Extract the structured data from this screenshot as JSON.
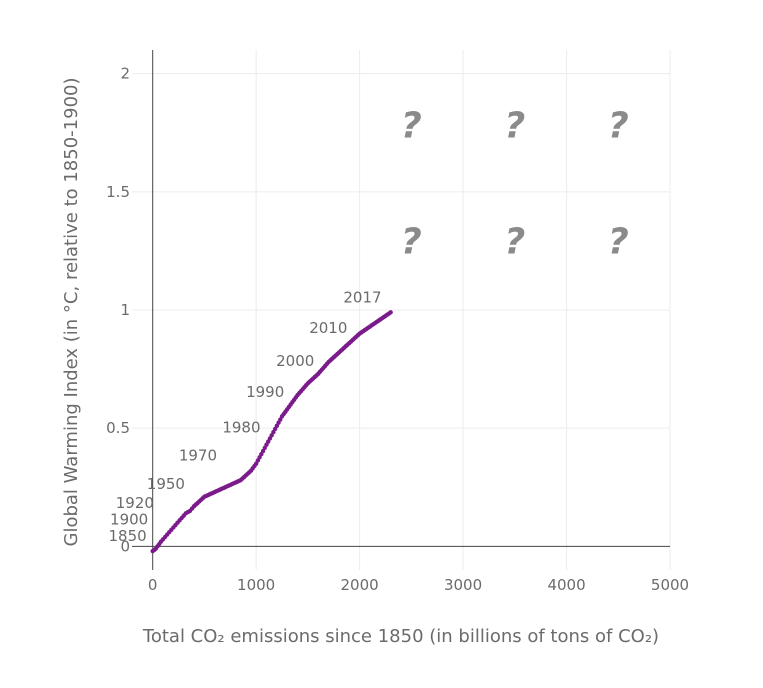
{
  "chart_data": {
    "type": "scatter",
    "title": "",
    "xlabel": "Total CO₂ emissions since 1850 (in billions of tons of CO₂)",
    "ylabel": "Global Warming Index (in °C, relative to 1850-1900)",
    "xlim": [
      -200,
      5000
    ],
    "ylim": [
      -0.1,
      2.1
    ],
    "x_ticks": [
      0,
      1000,
      2000,
      3000,
      4000,
      5000
    ],
    "x_tick_labels": [
      "0",
      "1000",
      "2000",
      "3000",
      "4000",
      "5000"
    ],
    "y_ticks": [
      0,
      0.5,
      1,
      1.5,
      2
    ],
    "y_tick_labels": [
      "0",
      "0.5",
      "1",
      "1.5",
      "2"
    ],
    "grid": true,
    "series": [
      {
        "color": "#7b1a8a",
        "x": [
          0,
          30,
          80,
          140,
          200,
          260,
          320,
          360,
          400,
          450,
          500,
          550,
          600,
          650,
          700,
          750,
          800,
          850,
          900,
          950,
          1000,
          1050,
          1100,
          1150,
          1200,
          1250,
          1300,
          1350,
          1400,
          1500,
          1600,
          1700,
          1800,
          1900,
          2000,
          2100,
          2200,
          2300
        ],
        "y": [
          -0.02,
          -0.01,
          0.02,
          0.05,
          0.08,
          0.11,
          0.14,
          0.15,
          0.17,
          0.19,
          0.21,
          0.22,
          0.23,
          0.24,
          0.25,
          0.26,
          0.27,
          0.28,
          0.3,
          0.32,
          0.35,
          0.39,
          0.43,
          0.47,
          0.51,
          0.55,
          0.58,
          0.61,
          0.64,
          0.69,
          0.73,
          0.78,
          0.82,
          0.86,
          0.9,
          0.93,
          0.96,
          0.99
        ]
      }
    ],
    "year_labels": [
      {
        "text": "1850",
        "x": 0,
        "y": -0.02
      },
      {
        "text": "1900",
        "x": 15,
        "y": 0.05
      },
      {
        "text": "1920",
        "x": 70,
        "y": 0.12
      },
      {
        "text": "1950",
        "x": 370,
        "y": 0.2
      },
      {
        "text": "1970",
        "x": 680,
        "y": 0.32
      },
      {
        "text": "1980",
        "x": 1100,
        "y": 0.44
      },
      {
        "text": "1990",
        "x": 1330,
        "y": 0.59
      },
      {
        "text": "2000",
        "x": 1620,
        "y": 0.72
      },
      {
        "text": "2010",
        "x": 1940,
        "y": 0.86
      },
      {
        "text": "2017",
        "x": 2270,
        "y": 0.99
      }
    ],
    "annotations": [
      {
        "text": "?",
        "x": 2500,
        "y": 1.78
      },
      {
        "text": "?",
        "x": 3500,
        "y": 1.78
      },
      {
        "text": "?",
        "x": 4500,
        "y": 1.78
      },
      {
        "text": "?",
        "x": 2500,
        "y": 1.29
      },
      {
        "text": "?",
        "x": 3500,
        "y": 1.29
      },
      {
        "text": "?",
        "x": 4500,
        "y": 1.29
      }
    ]
  }
}
